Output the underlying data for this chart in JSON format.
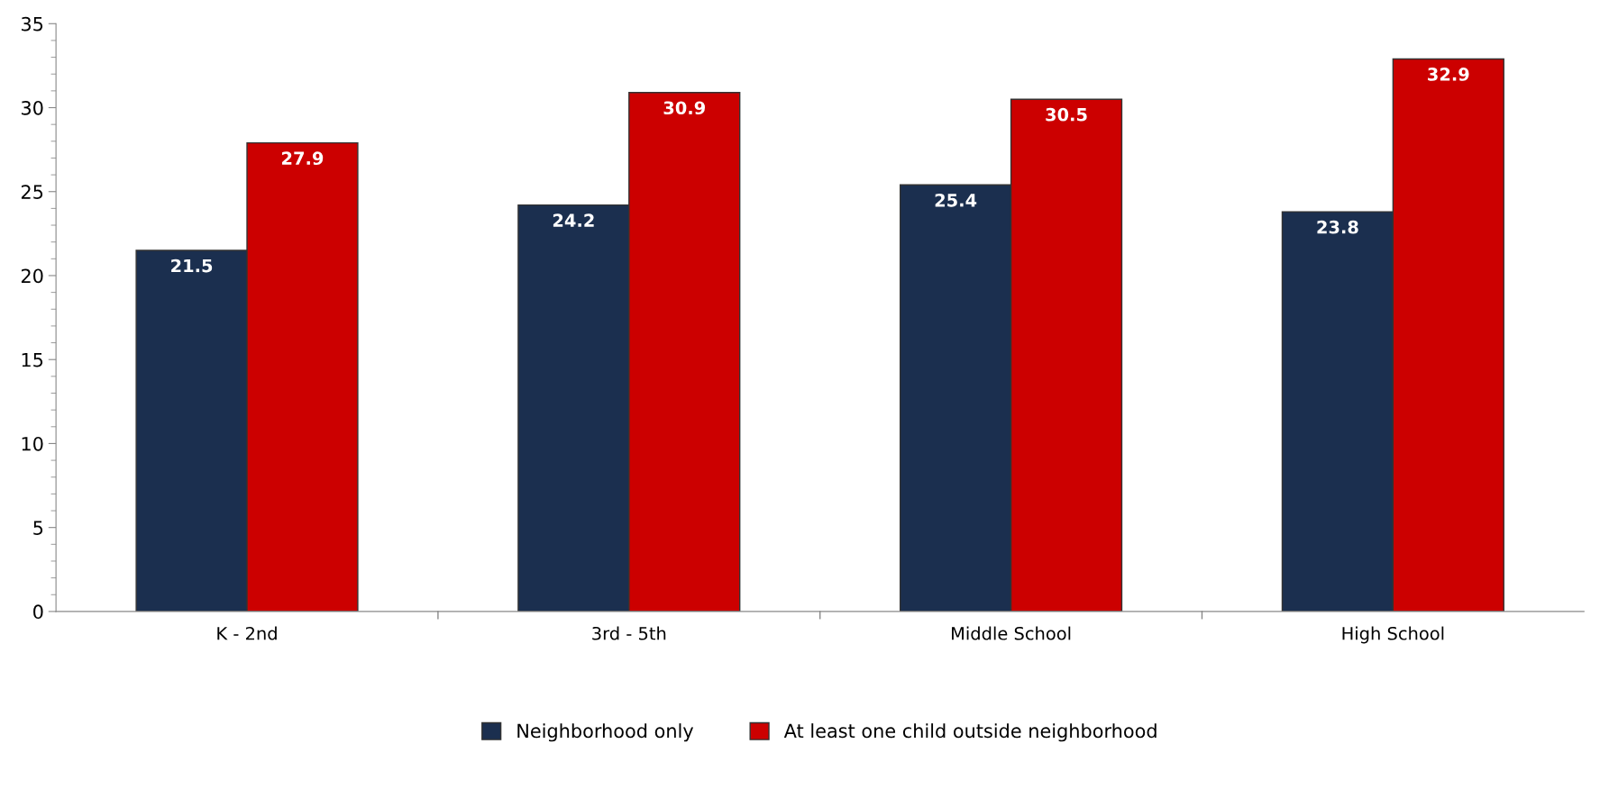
{
  "chart_data": {
    "type": "bar",
    "categories": [
      "K - 2nd",
      "3rd - 5th",
      "Middle School",
      "High School"
    ],
    "series": [
      {
        "name": "Neighborhood only",
        "color": "#1b2f4f",
        "values": [
          21.5,
          24.2,
          25.4,
          23.8
        ]
      },
      {
        "name": "At least one child outside neighborhood",
        "color": "#cc0000",
        "values": [
          27.9,
          30.9,
          30.5,
          32.9
        ]
      }
    ],
    "ylim": [
      0,
      35
    ],
    "yticks": [
      0,
      5,
      10,
      15,
      20,
      25,
      30,
      35
    ],
    "grid": false,
    "legend": "bottom",
    "data_labels": true
  }
}
